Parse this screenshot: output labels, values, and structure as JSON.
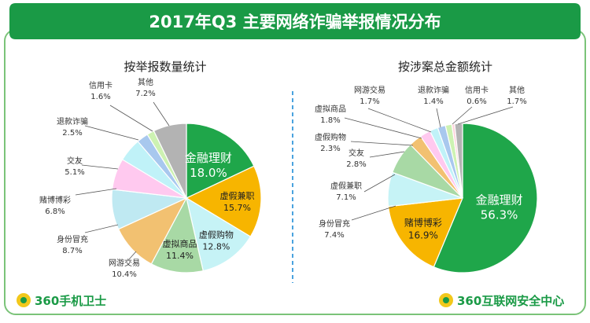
{
  "header": {
    "title": "2017年Q3 主要网络诈骗举报情况分布"
  },
  "footer": {
    "left_brand": "360手机卫士",
    "right_brand": "360互联网安全中心"
  },
  "colors": {
    "header_bg": "#1a9a46",
    "frame": "#7bc379",
    "divider": "#4aa3df",
    "series": [
      "#1fa64a",
      "#f7b500",
      "#c6f3f6",
      "#a8d9a5",
      "#f2c171",
      "#ffc9ef",
      "#c0f2f8",
      "#a8c8ee",
      "#cdf2b2",
      "#ffd3da",
      "#b3b3b3"
    ]
  },
  "chart_data": [
    {
      "type": "pie",
      "title": "按举报数量统计",
      "slices": [
        {
          "label": "金融理财",
          "value": 18.0,
          "display": "18.0%",
          "color": "#1fa64a"
        },
        {
          "label": "虚假兼职",
          "value": 15.7,
          "display": "15.7%",
          "color": "#f7b500"
        },
        {
          "label": "虚假购物",
          "value": 12.8,
          "display": "12.8%",
          "color": "#c6f3f6"
        },
        {
          "label": "虚拟商品",
          "value": 11.4,
          "display": "11.4%",
          "color": "#a8d9a5"
        },
        {
          "label": "网游交易",
          "value": 10.4,
          "display": "10.4%",
          "color": "#f2c171"
        },
        {
          "label": "身份冒充",
          "value": 8.7,
          "display": "8.7%",
          "color": "#bfe9f2"
        },
        {
          "label": "赌博博彩",
          "value": 6.8,
          "display": "6.8%",
          "color": "#ffc9ef"
        },
        {
          "label": "交友",
          "value": 5.1,
          "display": "5.1%",
          "color": "#c0f2f8"
        },
        {
          "label": "退款诈骗",
          "value": 2.5,
          "display": "2.5%",
          "color": "#a8c8ee"
        },
        {
          "label": "信用卡",
          "value": 1.6,
          "display": "1.6%",
          "color": "#cdf2b2"
        },
        {
          "label": "其他",
          "value": 7.2,
          "display": "7.2%",
          "color": "#b3b3b3"
        }
      ]
    },
    {
      "type": "pie",
      "title": "按涉案总金额统计",
      "slices": [
        {
          "label": "金融理财",
          "value": 56.3,
          "display": "56.3%",
          "color": "#1fa64a"
        },
        {
          "label": "赌博博彩",
          "value": 16.9,
          "display": "16.9%",
          "color": "#f7b500"
        },
        {
          "label": "身份冒充",
          "value": 7.4,
          "display": "7.4%",
          "color": "#c6f3f6"
        },
        {
          "label": "虚假兼职",
          "value": 7.1,
          "display": "7.1%",
          "color": "#a8d9a5"
        },
        {
          "label": "交友",
          "value": 2.8,
          "display": "2.8%",
          "color": "#f2c171"
        },
        {
          "label": "虚假购物",
          "value": 2.3,
          "display": "2.3%",
          "color": "#ffc9ef"
        },
        {
          "label": "虚拟商品",
          "value": 1.8,
          "display": "1.8%",
          "color": "#c0f2f8"
        },
        {
          "label": "网游交易",
          "value": 1.7,
          "display": "1.7%",
          "color": "#a8c8ee"
        },
        {
          "label": "退款诈骗",
          "value": 1.4,
          "display": "1.4%",
          "color": "#cdf2b2"
        },
        {
          "label": "信用卡",
          "value": 0.6,
          "display": "0.6%",
          "color": "#ffd3da"
        },
        {
          "label": "其他",
          "value": 1.7,
          "display": "1.7%",
          "color": "#b3b3b3"
        }
      ]
    }
  ]
}
